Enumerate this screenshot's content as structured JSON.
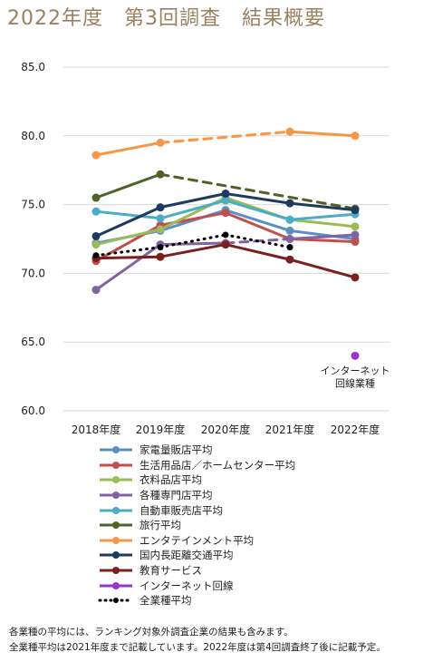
{
  "title": "2022年度　第3回調査　結果概要",
  "chart_data": {
    "type": "line",
    "categories": [
      "2018年度",
      "2019年度",
      "2020年度",
      "2021年度",
      "2022年度"
    ],
    "ylim": [
      60,
      85
    ],
    "yticks": [
      "85.0",
      "80.0",
      "75.0",
      "70.0",
      "65.0",
      "60.0"
    ],
    "ytick_values": [
      85,
      80,
      75,
      70,
      65,
      60
    ],
    "grid": true,
    "series": [
      {
        "name": "家電量販店平均",
        "color": "#5b8fc4",
        "values": [
          72.2,
          73.1,
          74.6,
          73.1,
          72.5
        ],
        "dash_last": false
      },
      {
        "name": "生活用品店／ホームセンター平均",
        "color": "#c0504d",
        "values": [
          70.9,
          73.5,
          74.4,
          72.5,
          72.3
        ],
        "dash_last": false
      },
      {
        "name": "衣料品店平均",
        "color": "#9bbb59",
        "values": [
          72.1,
          73.2,
          75.5,
          73.9,
          73.4
        ],
        "dash_last": false
      },
      {
        "name": "各種専門店平均",
        "color": "#8064a2",
        "values": [
          68.8,
          72.1,
          72.2,
          72.5,
          72.8
        ],
        "dash_segments": [
          2
        ]
      },
      {
        "name": "自動車販売店平均",
        "color": "#4bacc6",
        "values": [
          74.5,
          74.0,
          75.3,
          73.9,
          74.3
        ],
        "dash_last": false
      },
      {
        "name": "旅行平均",
        "color": "#4f6228",
        "values": [
          75.5,
          77.2,
          null,
          null,
          74.7
        ],
        "dash_segments": [
          1
        ]
      },
      {
        "name": "エンタテインメント平均",
        "color": "#f79646",
        "values": [
          78.6,
          79.5,
          null,
          80.3,
          80.0
        ],
        "dash_segments": [
          1
        ]
      },
      {
        "name": "国内長距離交通平均",
        "color": "#1f3a5f",
        "values": [
          72.7,
          74.8,
          75.8,
          75.1,
          74.6
        ],
        "dash_last": false
      },
      {
        "name": "教育サービス",
        "color": "#7b1f1f",
        "values": [
          71.1,
          71.2,
          72.1,
          71.0,
          69.7
        ],
        "dash_last": false
      },
      {
        "name": "インターネット回線",
        "color": "#9933cc",
        "values": [
          null,
          null,
          null,
          null,
          64.0
        ],
        "dash_last": false
      },
      {
        "name": "全業種平均",
        "color": "#000000",
        "values": [
          71.3,
          71.9,
          72.8,
          71.9,
          null
        ],
        "dotted": true
      }
    ],
    "annotation": [
      "インターネット",
      "回線業種"
    ]
  },
  "footnotes": [
    "各業種の平均には、ランキング対象外調査企業の結果も含みます。",
    "全業種平均は2021年度まで記載しています。2022年度は第4回調査終了後に記載予定。"
  ]
}
